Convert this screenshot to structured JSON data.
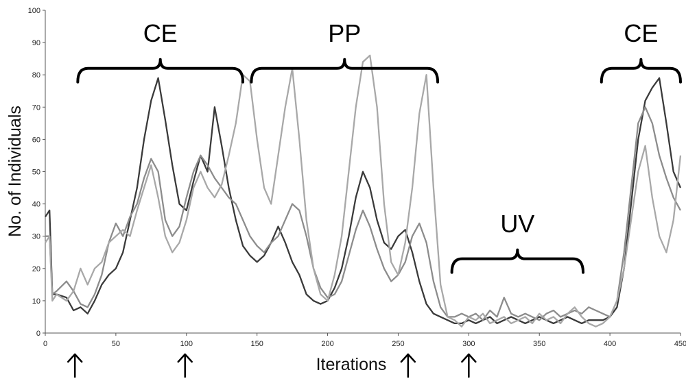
{
  "chart_data": {
    "type": "line",
    "title": "",
    "xlabel": "Iterations",
    "ylabel": "No. of Individuals",
    "xlim": [
      0,
      450
    ],
    "ylim": [
      0,
      100
    ],
    "x_ticks": [
      "0",
      "50",
      "100",
      "150",
      "200",
      "250",
      "300",
      "350",
      "400",
      "450"
    ],
    "y_ticks": [
      "0",
      "10",
      "20",
      "30",
      "40",
      "50",
      "60",
      "70",
      "80",
      "90",
      "100"
    ],
    "grid": false,
    "legend": "none",
    "series": [
      {
        "color": "#3a3a3a",
        "x": [
          0,
          3,
          5,
          8,
          15,
          20,
          25,
          30,
          35,
          40,
          45,
          50,
          55,
          60,
          65,
          70,
          75,
          80,
          85,
          90,
          95,
          100,
          105,
          110,
          115,
          120,
          125,
          130,
          135,
          140,
          145,
          150,
          155,
          160,
          165,
          170,
          175,
          180,
          185,
          190,
          195,
          200,
          205,
          210,
          215,
          220,
          225,
          230,
          235,
          240,
          245,
          250,
          255,
          260,
          265,
          270,
          275,
          280,
          285,
          290,
          295,
          300,
          305,
          310,
          315,
          320,
          325,
          330,
          335,
          340,
          345,
          350,
          355,
          360,
          365,
          370,
          375,
          380,
          385,
          390,
          395,
          400,
          405,
          410,
          415,
          420,
          425,
          430,
          435,
          440,
          445,
          450
        ],
        "y": [
          36,
          38,
          12,
          12,
          11,
          7,
          8,
          6,
          10,
          15,
          18,
          20,
          25,
          35,
          45,
          60,
          72,
          79,
          66,
          52,
          40,
          38,
          47,
          55,
          50,
          70,
          58,
          45,
          35,
          27,
          24,
          22,
          24,
          28,
          33,
          28,
          22,
          18,
          12,
          10,
          9,
          10,
          14,
          20,
          30,
          42,
          50,
          45,
          35,
          28,
          26,
          30,
          32,
          25,
          16,
          9,
          6,
          5,
          4,
          3,
          3,
          4,
          3,
          4,
          5,
          3,
          4,
          5,
          4,
          3,
          4,
          5,
          4,
          3,
          4,
          5,
          4,
          3,
          4,
          4,
          4,
          5,
          8,
          20,
          40,
          60,
          72,
          76,
          79,
          65,
          50,
          45
        ]
      },
      {
        "color": "#8c8c8c",
        "x": [
          0,
          3,
          5,
          8,
          15,
          20,
          25,
          30,
          35,
          40,
          45,
          50,
          55,
          60,
          65,
          70,
          75,
          80,
          85,
          90,
          95,
          100,
          105,
          110,
          115,
          120,
          125,
          130,
          135,
          140,
          145,
          150,
          155,
          160,
          165,
          170,
          175,
          180,
          185,
          190,
          195,
          200,
          205,
          210,
          215,
          220,
          225,
          230,
          235,
          240,
          245,
          250,
          255,
          260,
          265,
          270,
          275,
          280,
          285,
          290,
          295,
          300,
          305,
          310,
          315,
          320,
          325,
          330,
          335,
          340,
          345,
          350,
          355,
          360,
          365,
          370,
          375,
          380,
          385,
          390,
          395,
          400,
          405,
          410,
          415,
          420,
          425,
          430,
          435,
          440,
          445,
          450
        ],
        "y": [
          30,
          30,
          12,
          13,
          16,
          13,
          9,
          8,
          12,
          18,
          28,
          34,
          30,
          36,
          40,
          48,
          54,
          50,
          35,
          30,
          33,
          42,
          50,
          55,
          52,
          48,
          45,
          42,
          40,
          35,
          30,
          27,
          25,
          28,
          30,
          35,
          40,
          38,
          30,
          20,
          14,
          11,
          12,
          16,
          24,
          32,
          38,
          33,
          26,
          20,
          16,
          18,
          22,
          30,
          34,
          28,
          16,
          8,
          5,
          5,
          6,
          5,
          6,
          4,
          7,
          5,
          11,
          6,
          5,
          6,
          5,
          4,
          6,
          7,
          5,
          6,
          7,
          6,
          8,
          7,
          6,
          5,
          10,
          25,
          45,
          65,
          70,
          65,
          55,
          48,
          42,
          38
        ]
      },
      {
        "color": "#a8a8a8",
        "x": [
          0,
          3,
          5,
          8,
          15,
          20,
          25,
          30,
          35,
          40,
          45,
          50,
          55,
          60,
          65,
          70,
          75,
          80,
          85,
          90,
          95,
          100,
          105,
          110,
          115,
          120,
          125,
          130,
          135,
          140,
          145,
          150,
          155,
          160,
          165,
          170,
          175,
          180,
          185,
          190,
          195,
          200,
          205,
          210,
          215,
          220,
          225,
          230,
          235,
          240,
          245,
          250,
          255,
          260,
          265,
          270,
          275,
          280,
          285,
          290,
          295,
          300,
          305,
          310,
          315,
          320,
          325,
          330,
          335,
          340,
          345,
          350,
          355,
          360,
          365,
          370,
          375,
          380,
          385,
          390,
          395,
          400,
          405,
          410,
          415,
          420,
          425,
          430,
          435,
          440,
          445,
          450
        ],
        "y": [
          28,
          30,
          10,
          12,
          10,
          13,
          20,
          15,
          20,
          22,
          28,
          30,
          32,
          30,
          38,
          45,
          52,
          42,
          30,
          25,
          28,
          35,
          45,
          50,
          45,
          42,
          46,
          55,
          65,
          80,
          78,
          60,
          45,
          40,
          55,
          70,
          82,
          60,
          35,
          20,
          12,
          10,
          18,
          30,
          50,
          70,
          84,
          86,
          70,
          40,
          22,
          18,
          28,
          45,
          68,
          80,
          45,
          15,
          5,
          4,
          2,
          5,
          4,
          6,
          3,
          4,
          5,
          3,
          4,
          5,
          3,
          6,
          4,
          5,
          3,
          6,
          8,
          5,
          3,
          2,
          3,
          5,
          10,
          20,
          35,
          50,
          58,
          42,
          30,
          25,
          35,
          55
        ]
      }
    ],
    "annotations": {
      "phases": [
        {
          "label": "CE",
          "x_start": 23,
          "x_end": 140,
          "y_bracket": 82,
          "label_y": 93
        },
        {
          "label": "PP",
          "x_start": 146,
          "x_end": 278,
          "y_bracket": 82,
          "label_y": 93
        },
        {
          "label": "UV",
          "x_start": 288,
          "x_end": 381,
          "y_bracket": 23,
          "label_y": 34
        },
        {
          "label": "CE",
          "x_start": 394,
          "x_end": 450,
          "y_bracket": 82,
          "label_y": 93
        }
      ],
      "arrows_at_x": [
        21,
        99,
        257,
        300
      ]
    }
  }
}
